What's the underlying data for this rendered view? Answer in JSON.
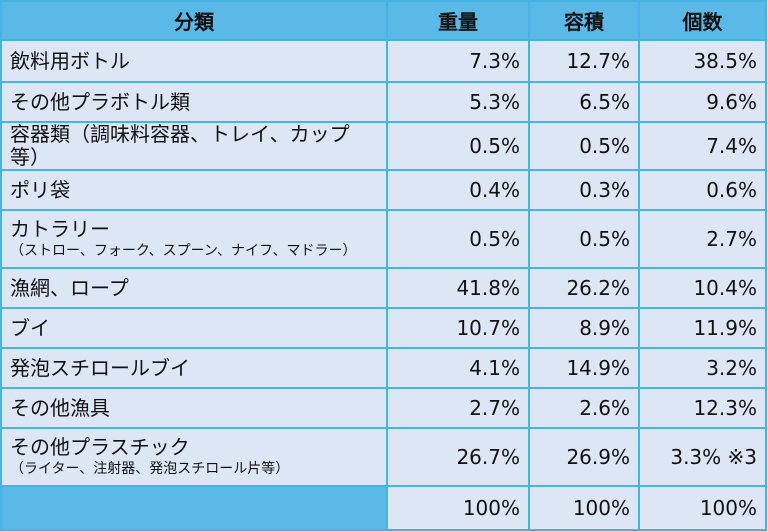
{
  "header": {
    "category": "分類",
    "weight": "重量",
    "volume": "容積",
    "count": "個数"
  },
  "rows": [
    {
      "category": "飲料用ボトル",
      "sub": "",
      "weight": "7.3%",
      "volume": "12.7%",
      "count": "38.5%"
    },
    {
      "category": "その他プラボトル類",
      "sub": "",
      "weight": "5.3%",
      "volume": "6.5%",
      "count": "9.6%"
    },
    {
      "category": "容器類（調味料容器、トレイ、カップ等）",
      "sub": "",
      "weight": "0.5%",
      "volume": "0.5%",
      "count": "7.4%"
    },
    {
      "category": "ポリ袋",
      "sub": "",
      "weight": "0.4%",
      "volume": "0.3%",
      "count": "0.6%"
    },
    {
      "category": "カトラリー",
      "sub": "（ストロー、フォーク、スプーン、ナイフ、マドラー）",
      "weight": "0.5%",
      "volume": "0.5%",
      "count": "2.7%"
    },
    {
      "category": "漁網、ロープ",
      "sub": "",
      "weight": "41.8%",
      "volume": "26.2%",
      "count": "10.4%"
    },
    {
      "category": "ブイ",
      "sub": "",
      "weight": "10.7%",
      "volume": "8.9%",
      "count": "11.9%"
    },
    {
      "category": "発泡スチロールブイ",
      "sub": "",
      "weight": "4.1%",
      "volume": "14.9%",
      "count": "3.2%"
    },
    {
      "category": "その他漁具",
      "sub": "",
      "weight": "2.7%",
      "volume": "2.6%",
      "count": "12.3%"
    },
    {
      "category": "その他プラスチック",
      "sub": "（ライター、注射器、発泡スチロール片等）",
      "weight": "26.7%",
      "volume": "26.9%",
      "count": "3.3% ※3"
    }
  ],
  "total": {
    "category": "",
    "weight": "100%",
    "volume": "100%",
    "count": "100%"
  },
  "colors": {
    "header_bg": "#5ab9e6",
    "cell_bg": "#dde6f4",
    "border": "#42b5e6"
  }
}
